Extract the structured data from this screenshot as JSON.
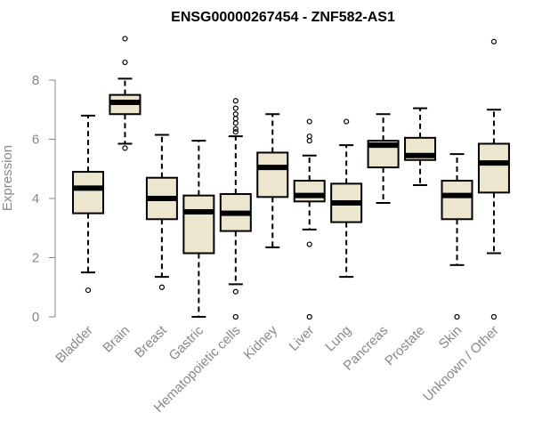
{
  "chart_data": {
    "type": "boxplot",
    "title": "ENSG00000267454 - ZNF582-AS1",
    "xlabel": "",
    "ylabel": "Expression",
    "ylim": [
      0,
      9.5
    ],
    "yticks": [
      0,
      2,
      4,
      6,
      8
    ],
    "grid": false,
    "legend": "none",
    "colors": {
      "box_fill": "#ede6cf",
      "stroke": "#000000",
      "axis_text": "#888888"
    },
    "categories": [
      "Bladder",
      "Brain",
      "Breast",
      "Gastric",
      "Hematopoietic cells",
      "Kidney",
      "Liver",
      "Lung",
      "Pancreas",
      "Prostate",
      "Skin",
      "Unknown / Other"
    ],
    "boxes": [
      {
        "min": 1.5,
        "q1": 3.5,
        "median": 4.35,
        "q3": 4.9,
        "max": 6.8,
        "outliers": [
          0.9
        ]
      },
      {
        "min": 5.85,
        "q1": 6.85,
        "median": 7.25,
        "q3": 7.5,
        "max": 8.05,
        "outliers": [
          9.4,
          8.6,
          5.7
        ]
      },
      {
        "min": 1.35,
        "q1": 3.3,
        "median": 4.0,
        "q3": 4.7,
        "max": 6.15,
        "outliers": [
          1.0
        ]
      },
      {
        "min": 0.0,
        "q1": 2.15,
        "median": 3.55,
        "q3": 4.1,
        "max": 5.95,
        "outliers": []
      },
      {
        "min": 1.1,
        "q1": 2.9,
        "median": 3.5,
        "q3": 4.15,
        "max": 6.1,
        "outliers": [
          7.3,
          7.05,
          6.85,
          6.7,
          6.55,
          6.35,
          6.25,
          0.85,
          0.0
        ]
      },
      {
        "min": 2.35,
        "q1": 4.05,
        "median": 5.05,
        "q3": 5.55,
        "max": 6.85,
        "outliers": []
      },
      {
        "min": 2.95,
        "q1": 3.9,
        "median": 4.1,
        "q3": 4.6,
        "max": 5.45,
        "outliers": [
          6.6,
          6.1,
          5.95,
          2.45,
          0.0
        ]
      },
      {
        "min": 1.35,
        "q1": 3.2,
        "median": 3.85,
        "q3": 4.5,
        "max": 5.8,
        "outliers": [
          6.6
        ]
      },
      {
        "min": 3.85,
        "q1": 5.05,
        "median": 5.8,
        "q3": 5.95,
        "max": 6.85,
        "outliers": []
      },
      {
        "min": 4.45,
        "q1": 5.3,
        "median": 5.45,
        "q3": 6.05,
        "max": 7.05,
        "outliers": []
      },
      {
        "min": 1.75,
        "q1": 3.3,
        "median": 4.1,
        "q3": 4.6,
        "max": 5.5,
        "outliers": [
          0.0
        ]
      },
      {
        "min": 2.15,
        "q1": 4.2,
        "median": 5.2,
        "q3": 5.85,
        "max": 7.0,
        "outliers": [
          9.3,
          0.0
        ]
      }
    ]
  }
}
